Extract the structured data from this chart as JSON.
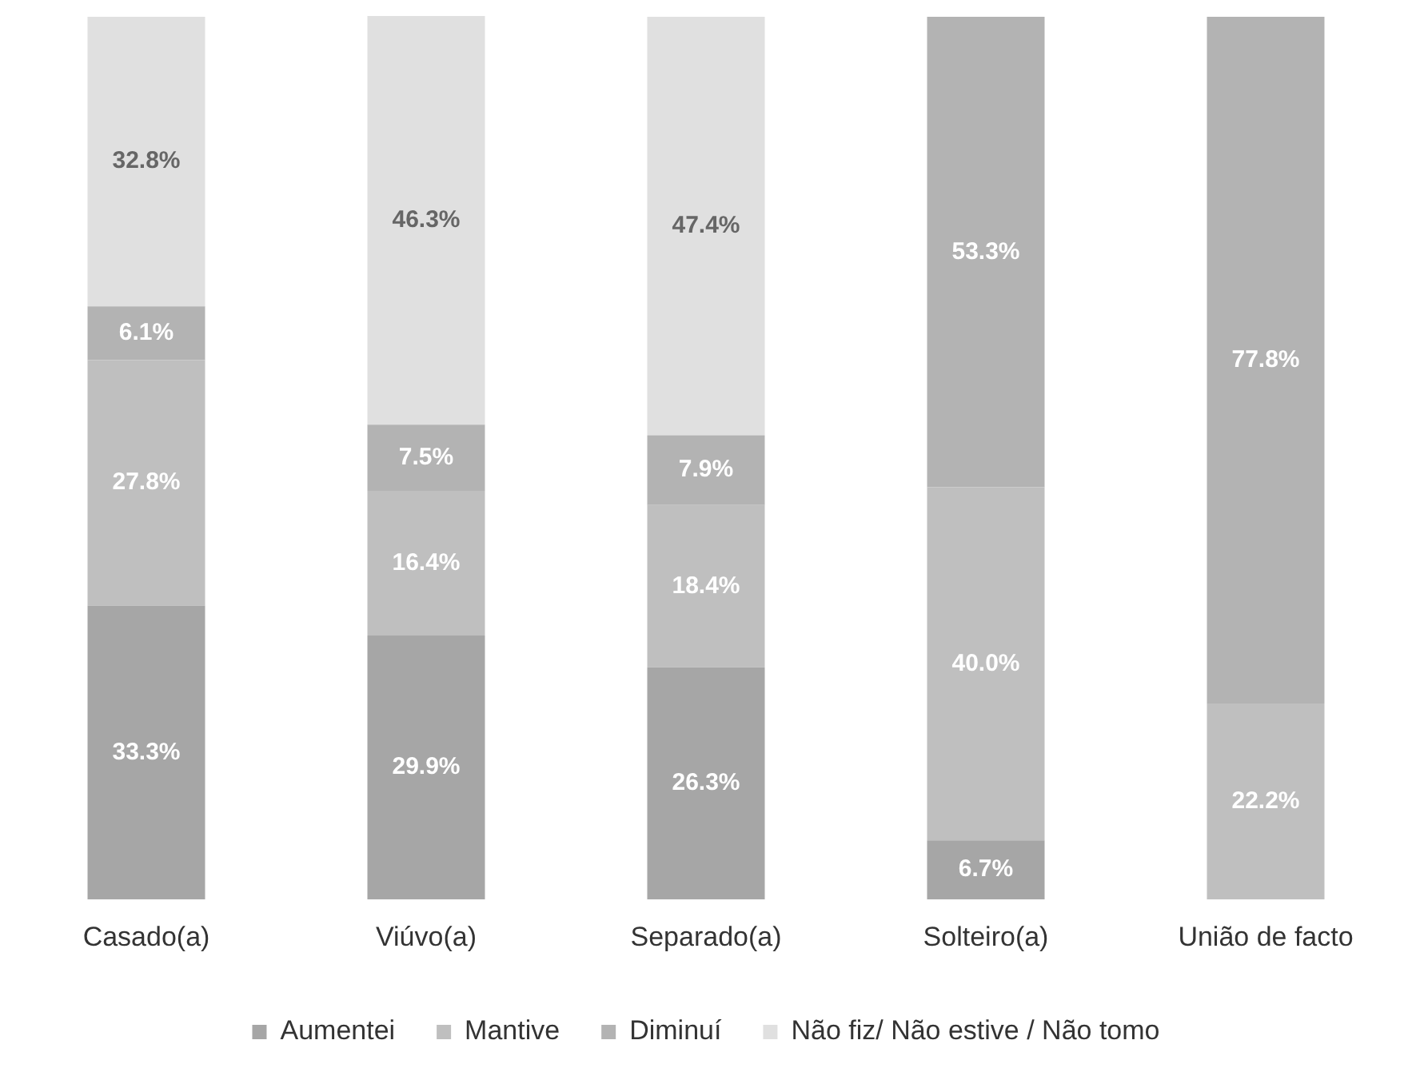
{
  "chart_data": {
    "type": "bar",
    "stacked": true,
    "categories": [
      "Casado(a)",
      "Viúvo(a)",
      "Separado(a)",
      "Solteiro(a)",
      "União de facto"
    ],
    "series": [
      {
        "name": "Aumentei",
        "color": "#a6a6a6",
        "values": [
          33.3,
          29.9,
          26.3,
          6.7,
          null
        ],
        "value_labels": [
          "33.3%",
          "29.9%",
          "26.3%",
          "6.7%",
          null
        ]
      },
      {
        "name": "Mantive",
        "color": "#bfbfbf",
        "values": [
          27.8,
          16.4,
          18.4,
          40.0,
          22.2
        ],
        "value_labels": [
          "27.8%",
          "16.4%",
          "18.4%",
          "40.0%",
          "22.2%"
        ]
      },
      {
        "name": "Diminuí",
        "color": "#b3b3b3",
        "values": [
          6.1,
          7.5,
          7.9,
          53.3,
          77.8
        ],
        "value_labels": [
          "6.1%",
          "7.5%",
          "7.9%",
          "53.3%",
          "77.8%"
        ]
      },
      {
        "name": "Não fiz/ Não estive / Não tomo",
        "color": "#e0e0e0",
        "values": [
          32.8,
          46.3,
          47.4,
          null,
          null
        ],
        "value_labels": [
          "32.8%",
          "46.3%",
          "47.4%",
          null,
          null
        ]
      }
    ],
    "legend": "bottom",
    "grid": false,
    "tick_labels": "x"
  }
}
